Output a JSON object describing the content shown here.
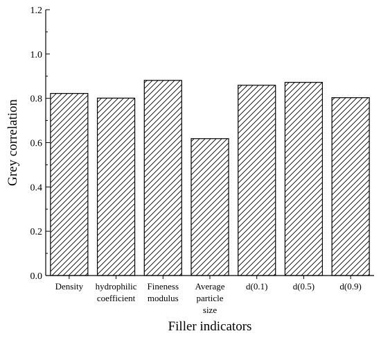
{
  "chart_data": {
    "type": "bar",
    "title": "",
    "xlabel": "Filler indicators",
    "ylabel": "Grey correlation",
    "ylim": [
      0.0,
      1.2
    ],
    "yticks": [
      "0.0",
      "0.2",
      "0.4",
      "0.6",
      "0.8",
      "1.0",
      "1.2"
    ],
    "categories": [
      [
        "Density"
      ],
      [
        "hydrophilic",
        "coefficient"
      ],
      [
        "Fineness",
        "modulus"
      ],
      [
        "Average",
        "particle",
        "size"
      ],
      [
        "d(0.1)"
      ],
      [
        "d(0.5)"
      ],
      [
        "d(0.9)"
      ]
    ],
    "values": [
      0.822,
      0.801,
      0.881,
      0.618,
      0.859,
      0.872,
      0.803
    ],
    "bar_fill": "diagonal hatch",
    "grid": false,
    "legend": "none"
  }
}
